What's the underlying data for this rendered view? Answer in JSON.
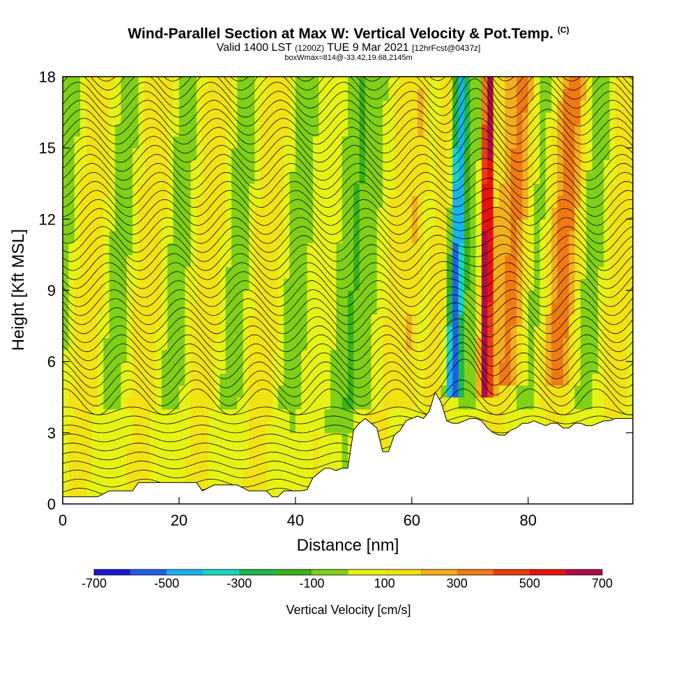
{
  "header": {
    "title": "Wind-Parallel Section at Max W: Vertical Velocity & Pot.Temp.",
    "copyright": "(C)",
    "valid_prefix": "Valid 1400 LST",
    "valid_utc": "(1200Z)",
    "valid_date": "TUE 9 Mar 2021",
    "forecast": "[12hrFcst@0437z]",
    "box_info": "boxWmax=814@-33.42,19.68,2145m"
  },
  "chart_data": {
    "type": "heatmap",
    "xlabel": "Distance [nm]",
    "ylabel": "Height [Kft MSL]",
    "xlim": [
      0,
      98
    ],
    "ylim": [
      0,
      18
    ],
    "xticks": [
      0,
      20,
      40,
      60,
      80
    ],
    "yticks": [
      0,
      3,
      6,
      9,
      12,
      15,
      18
    ],
    "colorbar": {
      "label": "Vertical Velocity [cm/s]",
      "tick_labels": [
        "-700",
        "-500",
        "-300",
        "-100",
        "100",
        "300",
        "500",
        "700"
      ],
      "levels": [
        -700,
        -600,
        -500,
        -400,
        -300,
        -200,
        -100,
        0,
        100,
        200,
        300,
        400,
        500,
        600,
        700
      ],
      "colors": [
        "#1c16d6",
        "#1f5fe8",
        "#16b5ec",
        "#13d9c4",
        "#1db84e",
        "#39b21a",
        "#7fd016",
        "#e6f214",
        "#f2e213",
        "#f4ae1c",
        "#f07a12",
        "#ec3d0e",
        "#e6120e",
        "#ab0c4c"
      ]
    },
    "terrain_kft": [
      [
        0,
        0.3
      ],
      [
        2,
        0.3
      ],
      [
        4,
        0.3
      ],
      [
        5,
        0.3
      ],
      [
        6,
        0.3
      ],
      [
        8,
        0.55
      ],
      [
        10,
        0.55
      ],
      [
        12,
        0.55
      ],
      [
        13,
        0.9
      ],
      [
        15,
        0.9
      ],
      [
        17,
        0.9
      ],
      [
        19,
        0.9
      ],
      [
        21,
        0.9
      ],
      [
        23,
        0.9
      ],
      [
        24,
        0.55
      ],
      [
        26,
        0.8
      ],
      [
        28,
        0.8
      ],
      [
        30,
        0.8
      ],
      [
        32,
        0.55
      ],
      [
        34,
        0.55
      ],
      [
        35,
        0.55
      ],
      [
        36,
        0.3
      ],
      [
        37,
        0.3
      ],
      [
        38,
        0.55
      ],
      [
        40,
        0.55
      ],
      [
        41,
        0.55
      ],
      [
        42,
        0.6
      ],
      [
        43,
        1.1
      ],
      [
        44,
        1.3
      ],
      [
        45,
        1.5
      ],
      [
        46,
        1.5
      ],
      [
        47,
        1.4
      ],
      [
        48,
        1.5
      ],
      [
        49,
        1.5
      ],
      [
        50,
        3.1
      ],
      [
        51,
        3.4
      ],
      [
        52,
        3.6
      ],
      [
        53,
        3.4
      ],
      [
        54,
        3.2
      ],
      [
        55,
        2.2
      ],
      [
        56,
        2.2
      ],
      [
        57,
        2.9
      ],
      [
        58,
        3.1
      ],
      [
        59,
        3.5
      ],
      [
        60,
        3.6
      ],
      [
        61,
        3.7
      ],
      [
        62,
        3.6
      ],
      [
        63,
        3.9
      ],
      [
        64,
        4.7
      ],
      [
        65,
        4.3
      ],
      [
        66,
        3.5
      ],
      [
        67,
        3.4
      ],
      [
        68,
        3.4
      ],
      [
        69,
        3.5
      ],
      [
        70,
        3.6
      ],
      [
        71,
        3.6
      ],
      [
        72,
        3.5
      ],
      [
        73,
        3.2
      ],
      [
        74,
        3.0
      ],
      [
        75,
        2.9
      ],
      [
        76,
        2.9
      ],
      [
        77,
        3.1
      ],
      [
        78,
        3.2
      ],
      [
        79,
        3.4
      ],
      [
        80,
        3.4
      ],
      [
        81,
        3.5
      ],
      [
        82,
        3.4
      ],
      [
        83,
        3.3
      ],
      [
        84,
        3.4
      ],
      [
        85,
        3.4
      ],
      [
        86,
        3.2
      ],
      [
        87,
        3.2
      ],
      [
        88,
        3.4
      ],
      [
        89,
        3.4
      ],
      [
        90,
        3.3
      ],
      [
        91,
        3.3
      ],
      [
        92,
        3.4
      ],
      [
        93,
        3.5
      ],
      [
        94,
        3.5
      ],
      [
        95,
        3.6
      ],
      [
        96,
        3.6
      ],
      [
        97,
        3.6
      ],
      [
        98,
        3.6
      ]
    ]
  }
}
